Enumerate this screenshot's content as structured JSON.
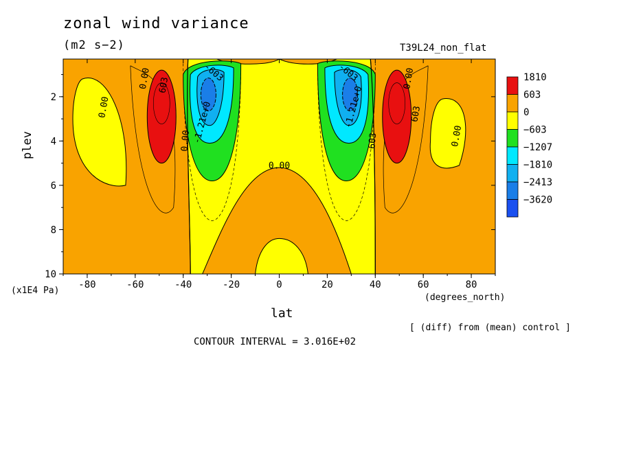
{
  "chart_data": {
    "type": "heatmap",
    "title": "zonal wind variance",
    "units": "(m2 s−2)",
    "run_name": "T39L24_non_flat",
    "xlabel": "lat",
    "x_units": "(degrees_north)",
    "ylabel": "plev",
    "y_units": "(x1E4 Pa)",
    "xlim": [
      -90,
      90
    ],
    "ylim": [
      10,
      0.3
    ],
    "y_inverted": true,
    "x_ticks": [
      -80,
      -60,
      -40,
      -20,
      0,
      20,
      40,
      60,
      80
    ],
    "y_ticks": [
      2,
      4,
      6,
      8,
      10
    ],
    "subtitle": "[ (diff) from (mean) control ]",
    "contour_interval_text": "CONTOUR INTERVAL = 3.016E+02",
    "contour_labels": [
      "603",
      "0.00",
      "0.00",
      "0.00",
      "0.00",
      "603",
      "603",
      "-603",
      "-603",
      "-1.21e+0",
      "-1.21e+0",
      "0.00",
      "0.00"
    ],
    "legend": {
      "placement": "right",
      "labels": [
        "1810",
        "603",
        "0",
        "−603",
        "−1207",
        "−1810",
        "−2413",
        "−3620"
      ],
      "colors": [
        "#e81010",
        "#f9a300",
        "#ffff00",
        "#20e020",
        "#00e8ff",
        "#10b0f0",
        "#1a7ee8",
        "#1a50f0"
      ]
    },
    "colors": {
      "orange": "#f9a300",
      "yellow": "#ffff00",
      "red": "#e81010",
      "green": "#20e020",
      "cyan": "#00e8ff",
      "lightblue": "#10b0f0",
      "blue": "#1a7ee8",
      "darkblue": "#1a50f0"
    },
    "features": [
      {
        "name": "yellow-band-sh",
        "color": "yellow",
        "lat": [
          -38,
          -30
        ],
        "plev": [
          0.5,
          10
        ]
      },
      {
        "name": "yellow-band-nh",
        "color": "yellow",
        "lat": [
          24,
          40
        ],
        "plev": [
          0.5,
          10
        ]
      },
      {
        "name": "yellow-band-center",
        "color": "yellow",
        "lat": [
          -25,
          25
        ],
        "plev": [
          0.3,
          5
        ]
      },
      {
        "name": "orange-dome",
        "color": "orange",
        "lat": [
          -32,
          32
        ],
        "plev": [
          5.2,
          10
        ]
      },
      {
        "name": "yellow-bottom-center",
        "color": "yellow",
        "lat": [
          -10,
          12
        ],
        "plev": [
          8.4,
          10
        ]
      },
      {
        "name": "yellow-sh-outer",
        "color": "yellow",
        "lat": [
          -88,
          -62
        ],
        "plev": [
          0.9,
          6
        ]
      },
      {
        "name": "yellow-nh-outer",
        "color": "yellow",
        "lat": [
          62,
          80
        ],
        "plev": [
          1.9,
          5.2
        ]
      },
      {
        "name": "red-sh",
        "color": "red",
        "lat": [
          -55,
          -43
        ],
        "plev": [
          0.8,
          5
        ]
      },
      {
        "name": "red-nh",
        "color": "red",
        "lat": [
          43,
          55
        ],
        "plev": [
          0.8,
          5
        ]
      },
      {
        "name": "green-sh",
        "color": "green",
        "lat": [
          -40,
          -16
        ],
        "plev": [
          0.5,
          5.8
        ]
      },
      {
        "name": "green-nh",
        "color": "green",
        "lat": [
          16,
          40
        ],
        "plev": [
          0.5,
          5.8
        ]
      },
      {
        "name": "cyan-sh",
        "color": "cyan",
        "lat": [
          -38,
          -20
        ],
        "plev": [
          0.6,
          4
        ]
      },
      {
        "name": "cyan-nh",
        "color": "cyan",
        "lat": [
          20,
          38
        ],
        "plev": [
          0.6,
          4
        ]
      },
      {
        "name": "blue-sh",
        "color": "blue",
        "lat": [
          -33,
          -25
        ],
        "plev": [
          1.0,
          2.8
        ]
      },
      {
        "name": "blue-nh",
        "color": "blue",
        "lat": [
          25,
          33
        ],
        "plev": [
          1.0,
          2.8
        ]
      }
    ]
  }
}
